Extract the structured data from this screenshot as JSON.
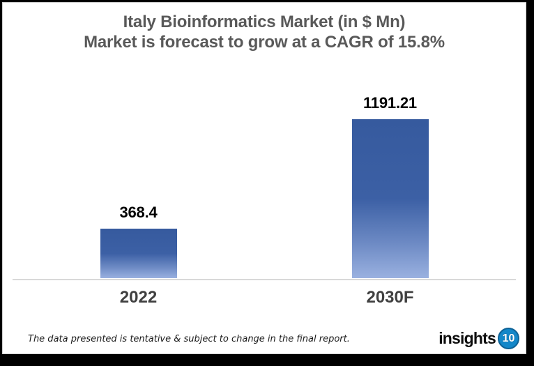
{
  "chart_data": {
    "type": "bar",
    "title_line1": "Italy Bioinformatics Market (in $ Mn)",
    "title_line2": "Market is forecast to grow at a CAGR of 15.8%",
    "categories": [
      "2022",
      "2030F"
    ],
    "values": [
      368.4,
      1191.21
    ],
    "value_labels": [
      "368.4",
      "1191.21"
    ],
    "xlabel": "",
    "ylabel": "",
    "ylim": [
      0,
      1250
    ],
    "grid": false,
    "legend": "none",
    "bar_gradient_stops": [
      "#365A9E 0%",
      "#3C60A5 50%",
      "#6D8AC4 78%",
      "#9AB1E0 100%"
    ]
  },
  "footer": {
    "note": "The data presented is tentative & subject to change in the final report.",
    "logo_text": "insights",
    "logo_badge": "10",
    "logo_badge_color": "#1387C9",
    "logo_badge_border": "#0E6296"
  },
  "colors": {
    "title": "#595959",
    "value_label": "#000000",
    "category_label": "#404040",
    "axis_line": "#D9D9D9",
    "card_border": "#CFCFCF",
    "frame": "#000000"
  }
}
